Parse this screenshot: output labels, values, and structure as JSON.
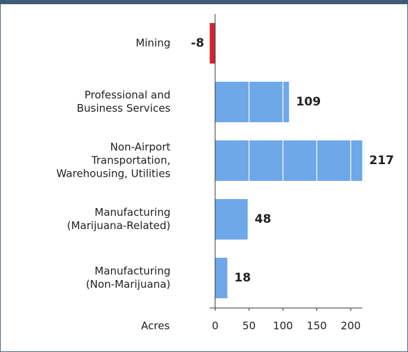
{
  "chart_data": {
    "type": "bar",
    "orientation": "horizontal",
    "categories": [
      "Mining",
      "Professional and\nBusiness Services",
      "Non-Airport\nTransportation,\nWarehousing, Utilities",
      "Manufacturing\n(Marijuana-Related)",
      "Manufacturing\n(Non-Marijuana)"
    ],
    "values": [
      -8,
      109,
      217,
      48,
      18
    ],
    "color": "#6ea8e8",
    "negative_color": "#d42231",
    "x_label": "Acres",
    "xlim": [
      -8,
      217
    ],
    "xticks": [
      0,
      50,
      100,
      150,
      200
    ],
    "grid": true
  }
}
